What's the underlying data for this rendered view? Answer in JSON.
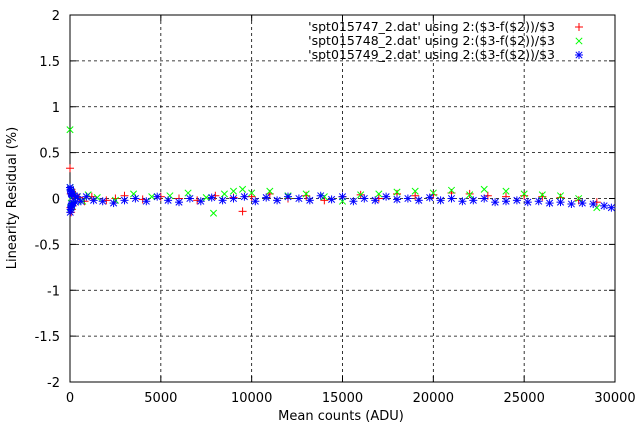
{
  "chart_data": {
    "type": "scatter",
    "title": "",
    "xlabel": "Mean counts (ADU)",
    "ylabel": "Linearity Residual (%)",
    "xlim": [
      0,
      30000
    ],
    "ylim": [
      -2,
      2
    ],
    "xticks": [
      0,
      5000,
      10000,
      15000,
      20000,
      25000,
      30000
    ],
    "xtick_labels": [
      "0",
      "5000",
      "10000",
      "15000",
      "20000",
      "25000",
      "30000"
    ],
    "yticks": [
      -2,
      -1.5,
      -1,
      -0.5,
      0,
      0.5,
      1,
      1.5,
      2
    ],
    "ytick_labels": [
      "-2",
      "-1.5",
      "-1",
      "-0.5",
      "0",
      "0.5",
      "1",
      "1.5",
      "2"
    ],
    "grid": true,
    "legend_position": "top-right",
    "series": [
      {
        "name": "'spt015747_2.dat' using 2:($3-f($2))/$3",
        "marker": "plus",
        "color": "#ff0000",
        "x": [
          0,
          20,
          40,
          60,
          80,
          100,
          120,
          150,
          200,
          300,
          500,
          800,
          1200,
          2000,
          2500,
          3000,
          4000,
          5000,
          6000,
          7000,
          8000,
          9000,
          9500,
          10000,
          11000,
          12000,
          13000,
          14000,
          15000,
          16000,
          17000,
          18000,
          19000,
          20000,
          21000,
          22000,
          23000,
          24000,
          25000,
          26000,
          27000,
          28000,
          29000
        ],
        "y": [
          0.33,
          -0.1,
          0.05,
          -0.15,
          0.1,
          -0.12,
          0.03,
          -0.08,
          0.02,
          0.04,
          0.01,
          -0.03,
          0.02,
          -0.02,
          0.0,
          0.03,
          -0.01,
          0.02,
          0.0,
          -0.02,
          0.03,
          0.01,
          -0.14,
          0.02,
          0.05,
          0.0,
          0.03,
          -0.02,
          0.02,
          0.04,
          0.0,
          0.05,
          0.03,
          0.04,
          0.06,
          0.05,
          0.03,
          0.02,
          0.03,
          0.02,
          0.01,
          -0.02,
          -0.04
        ]
      },
      {
        "name": "'spt015748_2.dat' using 2:($3-f($2))/$3",
        "marker": "cross",
        "color": "#00ff00",
        "x": [
          0,
          10,
          30,
          50,
          70,
          90,
          110,
          150,
          200,
          400,
          700,
          1000,
          1500,
          2500,
          3500,
          4500,
          5500,
          6500,
          7500,
          7900,
          8500,
          9000,
          9500,
          10000,
          11000,
          12000,
          13000,
          14000,
          15000,
          16000,
          17000,
          18000,
          19000,
          20000,
          21000,
          22000,
          22800,
          24000,
          25000,
          26000,
          27000,
          28000,
          29000
        ],
        "y": [
          0.75,
          0.12,
          -0.1,
          0.08,
          -0.05,
          0.06,
          -0.08,
          0.03,
          -0.02,
          0.02,
          -0.03,
          0.04,
          0.01,
          -0.02,
          0.05,
          0.02,
          0.03,
          0.06,
          0.01,
          -0.16,
          0.05,
          0.08,
          0.1,
          0.06,
          0.08,
          0.03,
          0.05,
          0.02,
          -0.03,
          0.04,
          0.05,
          0.07,
          0.08,
          0.06,
          0.09,
          0.04,
          0.1,
          0.08,
          0.05,
          0.04,
          0.03,
          0.0,
          -0.1
        ]
      },
      {
        "name": "'spt015749_2.dat' using 2:($3-f($2))/$3",
        "marker": "star",
        "color": "#0000ff",
        "x": [
          0,
          15,
          25,
          35,
          45,
          55,
          65,
          75,
          85,
          95,
          120,
          160,
          220,
          300,
          400,
          600,
          900,
          1300,
          1800,
          2400,
          3000,
          3600,
          4200,
          4800,
          5400,
          6000,
          6600,
          7200,
          7800,
          8400,
          9000,
          9600,
          10200,
          10800,
          11400,
          12000,
          12600,
          13200,
          13800,
          14400,
          15000,
          15600,
          16200,
          16800,
          17400,
          18000,
          18600,
          19200,
          19800,
          20400,
          21000,
          21600,
          22200,
          22800,
          23400,
          24000,
          24600,
          25200,
          25800,
          26400,
          27000,
          27600,
          28200,
          28800,
          29400,
          29800
        ],
        "y": [
          0.12,
          -0.15,
          0.1,
          -0.12,
          0.08,
          -0.1,
          0.06,
          -0.08,
          0.05,
          -0.06,
          0.04,
          -0.05,
          0.03,
          -0.04,
          0.02,
          -0.03,
          0.02,
          -0.02,
          -0.03,
          -0.05,
          -0.02,
          0.0,
          -0.03,
          0.02,
          -0.02,
          -0.04,
          0.0,
          -0.03,
          0.01,
          -0.02,
          0.0,
          0.02,
          -0.03,
          0.01,
          -0.02,
          0.02,
          0.0,
          -0.02,
          0.03,
          -0.01,
          0.02,
          -0.03,
          0.0,
          -0.02,
          0.02,
          -0.01,
          0.0,
          -0.02,
          0.01,
          -0.02,
          0.0,
          -0.03,
          -0.02,
          0.0,
          -0.04,
          -0.03,
          -0.02,
          -0.04,
          -0.03,
          -0.05,
          -0.04,
          -0.06,
          -0.05,
          -0.06,
          -0.08,
          -0.1
        ]
      }
    ]
  }
}
